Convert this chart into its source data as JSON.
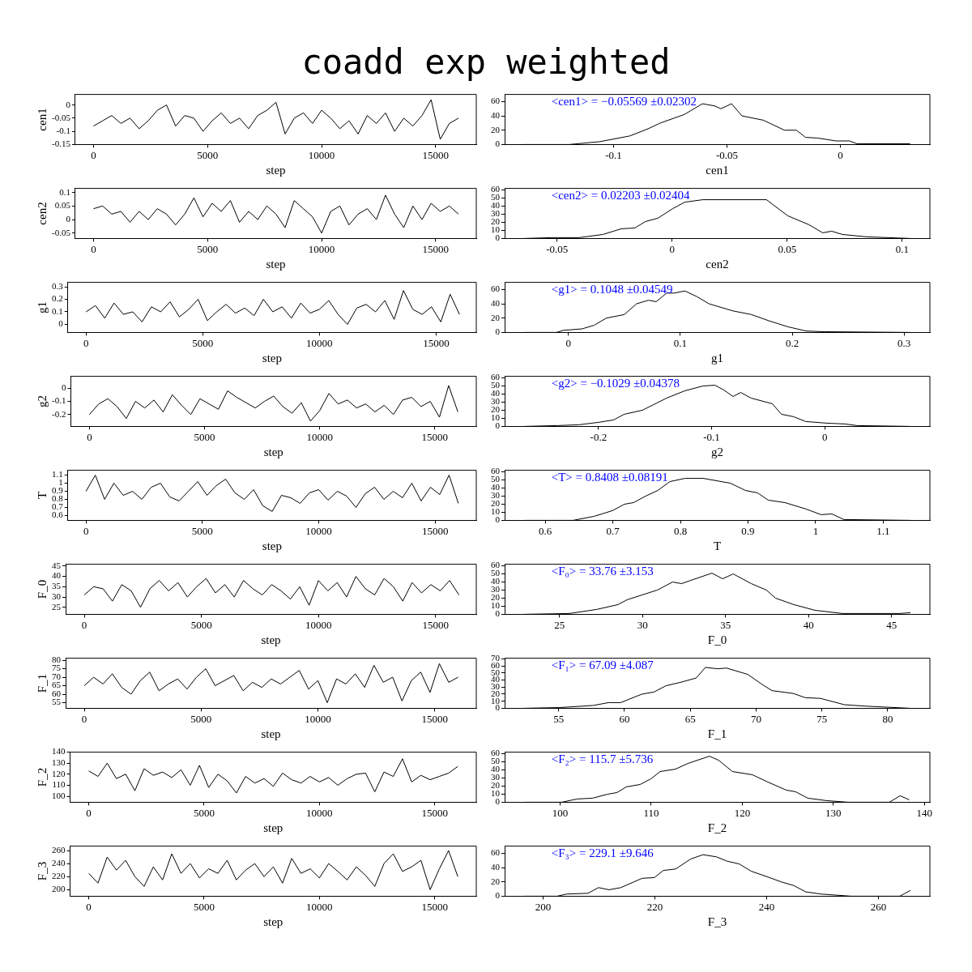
{
  "chart_data": [
    {
      "type": "line",
      "title": "coadd exp weighted",
      "xlabel": "step",
      "ylabel": "cen1",
      "xlim": [
        -800,
        16780
      ],
      "xticks": [
        0,
        5000,
        10000,
        15000
      ],
      "ylim": [
        -0.15,
        0.04
      ],
      "yticks": [
        -0.15,
        -0.1,
        -0.05,
        0
      ],
      "x": [
        0,
        400,
        800,
        1200,
        1600,
        2000,
        2400,
        2800,
        3200,
        3600,
        4000,
        4400,
        4800,
        5200,
        5600,
        6000,
        6400,
        6800,
        7200,
        7600,
        8000,
        8400,
        8800,
        9200,
        9600,
        10000,
        10400,
        10800,
        11200,
        11600,
        12000,
        12400,
        12800,
        13200,
        13600,
        14000,
        14400,
        14800,
        15200,
        15600,
        16000
      ],
      "series": [
        {
          "color": "#000000",
          "values": [
            -0.08,
            -0.06,
            -0.04,
            -0.07,
            -0.05,
            -0.09,
            -0.06,
            -0.02,
            0.0,
            -0.08,
            -0.04,
            -0.05,
            -0.1,
            -0.06,
            -0.03,
            -0.07,
            -0.05,
            -0.09,
            -0.04,
            -0.02,
            0.01,
            -0.11,
            -0.05,
            -0.03,
            -0.07,
            -0.02,
            -0.05,
            -0.09,
            -0.06,
            -0.11,
            -0.04,
            -0.07,
            -0.03,
            -0.1,
            -0.05,
            -0.08,
            -0.04,
            0.02,
            -0.13,
            -0.07,
            -0.05
          ]
        }
      ]
    },
    {
      "type": "line",
      "xlabel": "cen1",
      "xlim": [
        -0.148,
        0.0394
      ],
      "xticks": [
        -0.1,
        -0.05,
        0
      ],
      "ylim": [
        0,
        70
      ],
      "yticks": [
        0,
        20,
        40,
        60
      ],
      "annotations": [
        "<cen1> = −0.05569 ±0.02302"
      ],
      "x": [
        -0.1398,
        -0.1195,
        -0.106,
        -0.0928,
        -0.0848,
        -0.0794,
        -0.0688,
        -0.0608,
        -0.0555,
        -0.0527,
        -0.048,
        -0.0434,
        -0.034,
        -0.0247,
        -0.0194,
        -0.0154,
        -0.01,
        -0.002,
        0.004,
        0.0073,
        0.0307
      ],
      "series": [
        {
          "color": "#000000",
          "values": [
            0,
            0,
            4,
            12,
            22,
            30,
            42,
            57,
            54,
            50,
            57,
            40,
            34,
            20,
            20,
            10,
            9,
            5,
            5,
            1,
            1
          ]
        }
      ]
    },
    {
      "type": "line",
      "xlabel": "step",
      "ylabel": "cen2",
      "xlim": [
        -800,
        16780
      ],
      "xticks": [
        0,
        5000,
        10000,
        15000
      ],
      "ylim": [
        -0.07,
        0.115
      ],
      "yticks": [
        -0.05,
        0,
        0.05,
        0.1
      ],
      "x": [
        0,
        400,
        800,
        1200,
        1600,
        2000,
        2400,
        2800,
        3200,
        3600,
        4000,
        4400,
        4800,
        5200,
        5600,
        6000,
        6400,
        6800,
        7200,
        7600,
        8000,
        8400,
        8800,
        9200,
        9600,
        10000,
        10400,
        10800,
        11200,
        11600,
        12000,
        12400,
        12800,
        13200,
        13600,
        14000,
        14400,
        14800,
        15200,
        15600,
        16000
      ],
      "series": [
        {
          "color": "#000000",
          "values": [
            0.04,
            0.05,
            0.02,
            0.03,
            -0.01,
            0.03,
            0.0,
            0.04,
            0.02,
            -0.02,
            0.02,
            0.08,
            0.01,
            0.06,
            0.03,
            0.07,
            -0.01,
            0.03,
            0.0,
            0.05,
            0.02,
            -0.03,
            0.07,
            0.04,
            0.01,
            -0.05,
            0.03,
            0.05,
            -0.02,
            0.02,
            0.04,
            0.0,
            0.09,
            0.02,
            -0.03,
            0.05,
            0.0,
            0.06,
            0.03,
            0.05,
            0.02
          ]
        }
      ]
    },
    {
      "type": "line",
      "xlabel": "cen2",
      "xlim": [
        -0.0728,
        0.112
      ],
      "xticks": [
        -0.05,
        0,
        0.05,
        0.1
      ],
      "ylim": [
        0,
        62
      ],
      "yticks": [
        0,
        10,
        20,
        30,
        40,
        50,
        60
      ],
      "annotations": [
        "<cen2> = 0.02203 ±0.02404"
      ],
      "x": [
        -0.0645,
        -0.0524,
        -0.0405,
        -0.03,
        -0.0221,
        -0.0162,
        -0.0116,
        -0.0063,
        0.0003,
        0.0055,
        0.0134,
        0.0187,
        0.041,
        0.0503,
        0.0595,
        0.0654,
        0.0693,
        0.0739,
        0.0845,
        0.1036
      ],
      "series": [
        {
          "color": "#000000",
          "values": [
            0,
            1,
            1,
            5,
            12,
            13,
            21,
            25,
            37,
            45,
            48,
            48,
            48,
            28,
            17,
            7,
            9,
            5,
            2,
            0
          ]
        }
      ]
    },
    {
      "type": "line",
      "xlabel": "step",
      "ylabel": "g1",
      "xlim": [
        -780,
        16720
      ],
      "xticks": [
        0,
        5000,
        10000,
        15000
      ],
      "ylim": [
        -0.064,
        0.335
      ],
      "yticks": [
        0,
        0.1,
        0.2,
        0.3
      ],
      "x": [
        0,
        400,
        800,
        1200,
        1600,
        2000,
        2400,
        2800,
        3200,
        3600,
        4000,
        4400,
        4800,
        5200,
        5600,
        6000,
        6400,
        6800,
        7200,
        7600,
        8000,
        8400,
        8800,
        9200,
        9600,
        10000,
        10400,
        10800,
        11200,
        11600,
        12000,
        12400,
        12800,
        13200,
        13600,
        14000,
        14400,
        14800,
        15200,
        15600,
        16000
      ],
      "series": [
        {
          "color": "#000000",
          "values": [
            0.1,
            0.15,
            0.05,
            0.17,
            0.08,
            0.1,
            0.02,
            0.14,
            0.1,
            0.18,
            0.06,
            0.12,
            0.2,
            0.03,
            0.1,
            0.16,
            0.09,
            0.13,
            0.07,
            0.2,
            0.1,
            0.14,
            0.05,
            0.17,
            0.09,
            0.12,
            0.19,
            0.08,
            0.0,
            0.13,
            0.16,
            0.1,
            0.19,
            0.04,
            0.27,
            0.12,
            0.08,
            0.14,
            0.02,
            0.24,
            0.08
          ]
        }
      ]
    },
    {
      "type": "line",
      "xlabel": "g1",
      "xlim": [
        -0.057,
        0.323
      ],
      "xticks": [
        0,
        0.1,
        0.2,
        0.3
      ],
      "ylim": [
        0,
        70
      ],
      "yticks": [
        0,
        20,
        40,
        60
      ],
      "annotations": [
        "<g1> = 0.1048 ±0.04549"
      ],
      "x": [
        -0.0392,
        -0.0108,
        -0.0041,
        0.0122,
        0.023,
        0.0338,
        0.05,
        0.0608,
        0.0716,
        0.0784,
        0.0878,
        0.0946,
        0.1041,
        0.1149,
        0.1257,
        0.1473,
        0.1635,
        0.1797,
        0.1959,
        0.2122,
        0.2284,
        0.3054
      ],
      "series": [
        {
          "color": "#000000",
          "values": [
            0,
            0,
            3,
            5,
            10,
            20,
            25,
            40,
            45,
            43,
            55,
            55,
            58,
            50,
            40,
            30,
            25,
            16,
            8,
            2,
            1,
            0
          ]
        }
      ]
    },
    {
      "type": "line",
      "xlabel": "step",
      "ylabel": "g2",
      "xlim": [
        -810,
        16800
      ],
      "xticks": [
        0,
        5000,
        10000,
        15000
      ],
      "ylim": [
        -0.29,
        0.09
      ],
      "yticks": [
        -0.2,
        -0.1,
        0
      ],
      "x": [
        0,
        400,
        800,
        1200,
        1600,
        2000,
        2400,
        2800,
        3200,
        3600,
        4000,
        4400,
        4800,
        5200,
        5600,
        6000,
        6400,
        6800,
        7200,
        7600,
        8000,
        8400,
        8800,
        9200,
        9600,
        10000,
        10400,
        10800,
        11200,
        11600,
        12000,
        12400,
        12800,
        13200,
        13600,
        14000,
        14400,
        14800,
        15200,
        15600,
        16000
      ],
      "series": [
        {
          "color": "#000000",
          "values": [
            -0.2,
            -0.12,
            -0.08,
            -0.14,
            -0.23,
            -0.1,
            -0.15,
            -0.09,
            -0.18,
            -0.05,
            -0.13,
            -0.2,
            -0.08,
            -0.12,
            -0.16,
            -0.02,
            -0.07,
            -0.11,
            -0.15,
            -0.1,
            -0.06,
            -0.14,
            -0.19,
            -0.11,
            -0.25,
            -0.17,
            -0.04,
            -0.12,
            -0.09,
            -0.15,
            -0.12,
            -0.18,
            -0.13,
            -0.2,
            -0.09,
            -0.07,
            -0.14,
            -0.1,
            -0.22,
            0.02,
            -0.18
          ]
        }
      ]
    },
    {
      "type": "line",
      "xlabel": "g2",
      "xlim": [
        -0.283,
        0.093
      ],
      "xticks": [
        -0.2,
        -0.1,
        0
      ],
      "ylim": [
        0,
        62
      ],
      "yticks": [
        0,
        10,
        20,
        30,
        40,
        50,
        60
      ],
      "annotations": [
        "<g2> = −0.1029 ±0.04378"
      ],
      "x": [
        -0.2655,
        -0.2361,
        -0.2174,
        -0.2,
        -0.1866,
        -0.1773,
        -0.1612,
        -0.1398,
        -0.1238,
        -0.1078,
        -0.0971,
        -0.0891,
        -0.081,
        -0.0743,
        -0.065,
        -0.0463,
        -0.0382,
        -0.0275,
        -0.0168,
        0.0019,
        0.0179,
        0.0286,
        0.0754
      ],
      "series": [
        {
          "color": "#000000",
          "values": [
            0,
            1,
            2,
            5,
            8,
            15,
            20,
            35,
            44,
            50,
            51,
            45,
            37,
            42,
            35,
            28,
            15,
            12,
            6,
            4,
            3,
            1,
            0
          ]
        }
      ]
    },
    {
      "type": "line",
      "xlabel": "step",
      "ylabel": "T",
      "xlim": [
        -780,
        16770
      ],
      "xticks": [
        0,
        5000,
        10000,
        15000
      ],
      "ylim": [
        0.54,
        1.16
      ],
      "yticks": [
        0.6,
        0.7,
        0.8,
        0.9,
        1,
        1.1
      ],
      "x": [
        0,
        400,
        800,
        1200,
        1600,
        2000,
        2400,
        2800,
        3200,
        3600,
        4000,
        4400,
        4800,
        5200,
        5600,
        6000,
        6400,
        6800,
        7200,
        7600,
        8000,
        8400,
        8800,
        9200,
        9600,
        10000,
        10400,
        10800,
        11200,
        11600,
        12000,
        12400,
        12800,
        13200,
        13600,
        14000,
        14400,
        14800,
        15200,
        15600,
        16000
      ],
      "series": [
        {
          "color": "#000000",
          "values": [
            0.9,
            1.1,
            0.8,
            1.0,
            0.85,
            0.9,
            0.8,
            0.95,
            1.0,
            0.83,
            0.78,
            0.9,
            1.02,
            0.85,
            0.97,
            1.05,
            0.88,
            0.8,
            0.92,
            0.72,
            0.65,
            0.85,
            0.82,
            0.75,
            0.88,
            0.92,
            0.79,
            0.9,
            0.84,
            0.7,
            0.87,
            0.95,
            0.8,
            0.9,
            0.82,
            1.0,
            0.78,
            0.95,
            0.86,
            1.1,
            0.75
          ]
        }
      ]
    },
    {
      "type": "line",
      "xlabel": "T",
      "xlim": [
        0.54,
        1.169
      ],
      "xticks": [
        0.6,
        0.7,
        0.8,
        0.9,
        1,
        1.1
      ],
      "ylim": [
        0,
        62
      ],
      "yticks": [
        0,
        10,
        20,
        30,
        40,
        50,
        60
      ],
      "annotations": [
        "<T> = 0.8408 ±0.08191"
      ],
      "x": [
        0.5696,
        0.6412,
        0.6725,
        0.6994,
        0.7173,
        0.7307,
        0.7486,
        0.7665,
        0.7844,
        0.8068,
        0.8337,
        0.874,
        0.8963,
        0.9142,
        0.9299,
        0.9545,
        0.9859,
        1.0082,
        1.0239,
        1.0418,
        1.1403
      ],
      "series": [
        {
          "color": "#000000",
          "values": [
            0,
            0,
            5,
            12,
            20,
            22,
            30,
            37,
            48,
            52,
            52,
            46,
            37,
            34,
            25,
            22,
            14,
            7,
            8,
            1,
            0
          ]
        }
      ]
    },
    {
      "type": "line",
      "xlabel": "step",
      "ylabel": "F_0",
      "xlim": [
        -800,
        16740
      ],
      "xticks": [
        0,
        5000,
        10000,
        15000
      ],
      "ylim": [
        21.6,
        45.9
      ],
      "yticks": [
        25,
        30,
        35,
        40,
        45
      ],
      "x": [
        0,
        400,
        800,
        1200,
        1600,
        2000,
        2400,
        2800,
        3200,
        3600,
        4000,
        4400,
        4800,
        5200,
        5600,
        6000,
        6400,
        6800,
        7200,
        7600,
        8000,
        8400,
        8800,
        9200,
        9600,
        10000,
        10400,
        10800,
        11200,
        11600,
        12000,
        12400,
        12800,
        13200,
        13600,
        14000,
        14400,
        14800,
        15200,
        15600,
        16000
      ],
      "series": [
        {
          "color": "#000000",
          "values": [
            31,
            35,
            34,
            28,
            36,
            33,
            25,
            34,
            38,
            33,
            37,
            30,
            35,
            39,
            32,
            36,
            30,
            38,
            34,
            31,
            36,
            33,
            29,
            35,
            26,
            38,
            33,
            37,
            30,
            40,
            34,
            31,
            39,
            35,
            28,
            37,
            32,
            36,
            33,
            38,
            31
          ]
        }
      ]
    },
    {
      "type": "line",
      "xlabel": "F_0",
      "xlim": [
        21.7,
        47.3
      ],
      "xticks": [
        25,
        30,
        35,
        40,
        45
      ],
      "ylim": [
        0,
        62
      ],
      "yticks": [
        0,
        10,
        20,
        30,
        40,
        50,
        60
      ],
      "annotations": [
        "<F₀> = 33.76 ±3.153"
      ],
      "x": [
        22.87,
        25.6,
        27.24,
        28.52,
        29.07,
        30.89,
        31.81,
        32.35,
        32.9,
        34.18,
        34.82,
        35.46,
        36.55,
        37.46,
        38.01,
        39.11,
        40.38,
        42.03,
        45.49,
        46.13
      ],
      "series": [
        {
          "color": "#000000",
          "values": [
            0,
            1,
            6,
            12,
            18,
            30,
            40,
            38,
            42,
            51,
            44,
            50,
            38,
            30,
            20,
            12,
            5,
            1,
            1,
            2
          ]
        }
      ]
    },
    {
      "type": "line",
      "xlabel": "step",
      "ylabel": "F_1",
      "xlim": [
        -800,
        16780
      ],
      "xticks": [
        0,
        5000,
        10000,
        15000
      ],
      "ylim": [
        51.7,
        81.2
      ],
      "yticks": [
        55,
        60,
        65,
        70,
        75,
        80
      ],
      "x": [
        0,
        400,
        800,
        1200,
        1600,
        2000,
        2400,
        2800,
        3200,
        3600,
        4000,
        4400,
        4800,
        5200,
        5600,
        6000,
        6400,
        6800,
        7200,
        7600,
        8000,
        8400,
        8800,
        9200,
        9600,
        10000,
        10400,
        10800,
        11200,
        11600,
        12000,
        12400,
        12800,
        13200,
        13600,
        14000,
        14400,
        14800,
        15200,
        15600,
        16000
      ],
      "series": [
        {
          "color": "#000000",
          "values": [
            65,
            70,
            66,
            72,
            64,
            60,
            68,
            73,
            62,
            66,
            69,
            63,
            70,
            75,
            65,
            68,
            71,
            62,
            67,
            64,
            69,
            66,
            70,
            74,
            63,
            68,
            55,
            69,
            66,
            72,
            64,
            77,
            67,
            70,
            56,
            68,
            73,
            61,
            78,
            67,
            70
          ]
        }
      ]
    },
    {
      "type": "line",
      "xlabel": "F_1",
      "xlim": [
        50.9,
        83.2
      ],
      "xticks": [
        55,
        60,
        65,
        70,
        75,
        80
      ],
      "ylim": [
        0,
        71
      ],
      "yticks": [
        0,
        10,
        20,
        30,
        40,
        50,
        60,
        70
      ],
      "annotations": [
        "<F₁> = 67.09 ±4.087"
      ],
      "x": [
        52.36,
        55.11,
        57.64,
        58.79,
        59.71,
        61.32,
        62.24,
        63.16,
        64.31,
        65.46,
        66.15,
        67.07,
        67.76,
        69.37,
        70.52,
        71.21,
        72.82,
        73.74,
        74.89,
        76.72,
        78.33,
        81.67
      ],
      "series": [
        {
          "color": "#000000",
          "values": [
            0,
            1,
            4,
            8,
            8,
            20,
            23,
            32,
            37,
            43,
            58,
            56,
            57,
            48,
            33,
            25,
            21,
            15,
            14,
            5,
            3,
            0
          ]
        }
      ]
    },
    {
      "type": "line",
      "xlabel": "step",
      "ylabel": "F_2",
      "xlim": [
        -810,
        16800
      ],
      "xticks": [
        0,
        5000,
        10000,
        15000
      ],
      "ylim": [
        94.6,
        140
      ],
      "yticks": [
        100,
        110,
        120,
        130,
        140
      ],
      "x": [
        0,
        400,
        800,
        1200,
        1600,
        2000,
        2400,
        2800,
        3200,
        3600,
        4000,
        4400,
        4800,
        5200,
        5600,
        6000,
        6400,
        6800,
        7200,
        7600,
        8000,
        8400,
        8800,
        9200,
        9600,
        10000,
        10400,
        10800,
        11200,
        11600,
        12000,
        12400,
        12800,
        13200,
        13600,
        14000,
        14400,
        14800,
        15200,
        15600,
        16000
      ],
      "series": [
        {
          "color": "#000000",
          "values": [
            123,
            118,
            130,
            116,
            120,
            105,
            125,
            119,
            122,
            117,
            124,
            110,
            128,
            108,
            120,
            114,
            103,
            118,
            112,
            116,
            109,
            121,
            115,
            112,
            118,
            113,
            117,
            110,
            116,
            120,
            121,
            104,
            122,
            118,
            134,
            113,
            119,
            115,
            118,
            121,
            127
          ]
        }
      ]
    },
    {
      "type": "line",
      "xlabel": "F_2",
      "xlim": [
        93.9,
        140.6
      ],
      "xticks": [
        100,
        110,
        120,
        130,
        140
      ],
      "ylim": [
        0,
        62
      ],
      "yticks": [
        0,
        10,
        20,
        30,
        40,
        50,
        60
      ],
      "annotations": [
        "<F₂> = 115.7 ±5.736"
      ],
      "x": [
        96.11,
        100.17,
        101.86,
        103.55,
        105.24,
        106.25,
        107.26,
        108.78,
        109.97,
        110.98,
        112.67,
        114.02,
        116.39,
        117.4,
        118.92,
        121.11,
        122.8,
        124.83,
        125.84,
        127.2,
        129.22,
        131.59,
        136.15,
        137.33,
        138.34
      ],
      "series": [
        {
          "color": "#000000",
          "values": [
            0,
            0,
            4,
            5,
            10,
            12,
            19,
            22,
            29,
            38,
            41,
            48,
            57,
            52,
            38,
            34,
            25,
            15,
            13,
            5,
            2,
            0,
            0,
            8,
            3
          ]
        }
      ]
    },
    {
      "type": "line",
      "xlabel": "step",
      "ylabel": "F_3",
      "xlim": [
        -810,
        16800
      ],
      "xticks": [
        0,
        5000,
        10000,
        15000
      ],
      "ylim": [
        190,
        266.8
      ],
      "yticks": [
        200,
        220,
        240,
        260
      ],
      "x": [
        0,
        400,
        800,
        1200,
        1600,
        2000,
        2400,
        2800,
        3200,
        3600,
        4000,
        4400,
        4800,
        5200,
        5600,
        6000,
        6400,
        6800,
        7200,
        7600,
        8000,
        8400,
        8800,
        9200,
        9600,
        10000,
        10400,
        10800,
        11200,
        11600,
        12000,
        12400,
        12800,
        13200,
        13600,
        14000,
        14400,
        14800,
        15200,
        15600,
        16000
      ],
      "series": [
        {
          "color": "#000000",
          "values": [
            225,
            210,
            250,
            230,
            245,
            220,
            205,
            235,
            215,
            255,
            225,
            240,
            218,
            232,
            225,
            245,
            215,
            230,
            240,
            220,
            235,
            210,
            248,
            225,
            232,
            218,
            240,
            228,
            215,
            235,
            222,
            205,
            240,
            255,
            228,
            235,
            245,
            200,
            232,
            260,
            220
          ]
        }
      ]
    },
    {
      "type": "line",
      "xlabel": "F_3",
      "xlim": [
        193.1,
        269.2
      ],
      "xticks": [
        200,
        220,
        240,
        260
      ],
      "ylim": [
        0,
        70
      ],
      "yticks": [
        0,
        20,
        40,
        60
      ],
      "annotations": [
        "<F₃> = 229.1 ±9.646"
      ],
      "x": [
        196.6,
        202.5,
        204.2,
        208,
        209.9,
        211.8,
        213.9,
        217.7,
        219.9,
        221.5,
        223.7,
        226.4,
        228.6,
        231,
        232.9,
        235.1,
        237.2,
        240.5,
        242.6,
        244.8,
        247,
        249.7,
        255.1,
        263.8,
        265.7
      ],
      "series": [
        {
          "color": "#000000",
          "values": [
            0,
            0,
            3,
            4,
            12,
            9,
            12,
            25,
            26,
            36,
            38,
            52,
            58,
            55,
            49,
            45,
            35,
            26,
            20,
            15,
            6,
            3,
            0,
            0,
            8
          ]
        }
      ]
    }
  ]
}
